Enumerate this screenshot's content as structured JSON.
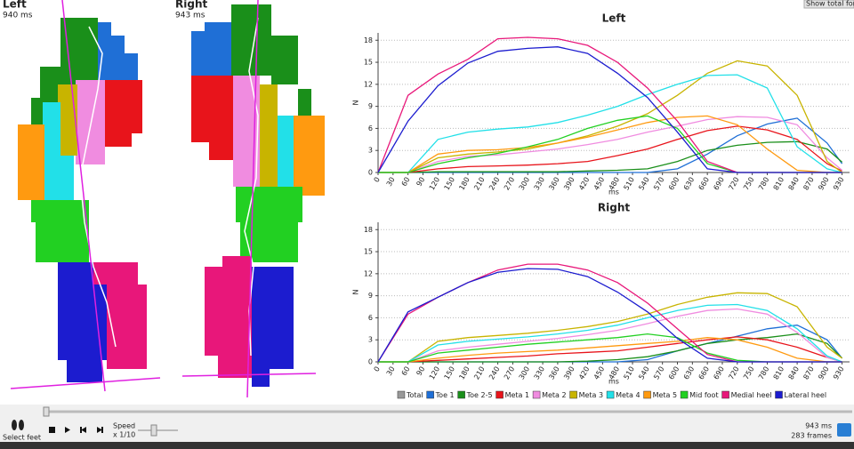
{
  "feet": {
    "left": {
      "label": "Left",
      "time": "940 ms"
    },
    "right": {
      "label": "Right",
      "time": "943 ms"
    }
  },
  "button": "Show total force",
  "chart_data": [
    {
      "type": "line",
      "title": "Left",
      "xlabel": "ms",
      "ylabel": "N",
      "grid": true,
      "x": [
        0,
        60,
        120,
        180,
        240,
        300,
        360,
        420,
        480,
        540,
        600,
        660,
        720,
        780,
        840,
        900,
        930
      ],
      "xlim": [
        0,
        945
      ],
      "xticks": [
        0,
        30,
        60,
        90,
        120,
        150,
        180,
        210,
        240,
        270,
        300,
        330,
        360,
        390,
        420,
        450,
        480,
        510,
        540,
        570,
        600,
        630,
        660,
        690,
        720,
        750,
        780,
        810,
        840,
        870,
        900,
        930
      ],
      "ylim": [
        0,
        19
      ],
      "yticks": [
        0,
        3,
        6,
        9,
        12,
        15,
        18
      ],
      "series": [
        {
          "color": "#1f6fd6",
          "values": [
            0,
            0,
            0,
            0,
            0,
            0,
            0,
            0,
            0,
            0,
            0.5,
            2.5,
            5,
            6.6,
            7.4,
            4,
            1.2
          ]
        },
        {
          "color": "#1a8f1a",
          "values": [
            0,
            0,
            0.1,
            0.1,
            0.1,
            0.1,
            0.1,
            0.2,
            0.3,
            0.5,
            1.5,
            3,
            3.7,
            4.1,
            4.2,
            3.2,
            1.4
          ]
        },
        {
          "color": "#e8141b",
          "values": [
            0,
            0,
            0.5,
            0.8,
            0.9,
            1,
            1.2,
            1.5,
            2.3,
            3.2,
            4.5,
            5.7,
            6.3,
            5.8,
            4.5,
            1.2,
            0.2
          ]
        },
        {
          "color": "#f08ce0",
          "values": [
            0,
            0,
            1.5,
            2.2,
            2.4,
            2.8,
            3.2,
            3.8,
            4.5,
            5.5,
            6.3,
            7.2,
            7.6,
            7.5,
            6.5,
            2,
            0.3
          ]
        },
        {
          "color": "#c8b400",
          "values": [
            0,
            0,
            2,
            2.5,
            2.8,
            3.2,
            4,
            5,
            6.3,
            8,
            10.5,
            13.5,
            15.2,
            14.5,
            10.5,
            1.5,
            0
          ]
        },
        {
          "color": "#22e0e8",
          "values": [
            0,
            0,
            4.5,
            5.5,
            5.9,
            6.2,
            6.8,
            7.8,
            9,
            10.6,
            12,
            13.2,
            13.3,
            11.5,
            3.5,
            0.5,
            0
          ]
        },
        {
          "color": "#ff9a10",
          "values": [
            0,
            0,
            2.5,
            3,
            3.1,
            3.4,
            4,
            4.8,
            5.8,
            6.8,
            7.5,
            7.7,
            6.5,
            3.2,
            0.3,
            0,
            0
          ]
        },
        {
          "color": "#22d022",
          "values": [
            0,
            0,
            1.2,
            2,
            2.6,
            3.5,
            4.5,
            6,
            7.1,
            7.7,
            6,
            1.2,
            0,
            0,
            0,
            0,
            0
          ]
        },
        {
          "color": "#e8177a",
          "values": [
            0,
            10.5,
            13.4,
            15.4,
            18.2,
            18.4,
            18.2,
            17.3,
            15,
            11.5,
            7,
            1.5,
            0,
            0,
            0,
            0,
            0
          ]
        },
        {
          "color": "#1c1ccf",
          "values": [
            0,
            7,
            11.8,
            14.9,
            16.5,
            16.9,
            17.1,
            16.2,
            13.5,
            10.2,
            5.5,
            0.5,
            0,
            0,
            0,
            0,
            0
          ]
        }
      ]
    },
    {
      "type": "line",
      "title": "Right",
      "xlabel": "ms",
      "ylabel": "N",
      "grid": true,
      "x": [
        0,
        60,
        120,
        180,
        240,
        300,
        360,
        420,
        480,
        540,
        600,
        660,
        720,
        780,
        840,
        900,
        930
      ],
      "xlim": [
        0,
        945
      ],
      "xticks": [
        0,
        30,
        60,
        90,
        120,
        150,
        180,
        210,
        240,
        270,
        300,
        330,
        360,
        390,
        420,
        450,
        480,
        510,
        540,
        570,
        600,
        630,
        660,
        690,
        720,
        750,
        780,
        810,
        840,
        870,
        900,
        930
      ],
      "ylim": [
        0,
        19
      ],
      "yticks": [
        0,
        3,
        6,
        9,
        12,
        15,
        18
      ],
      "series": [
        {
          "name": "Total",
          "color": "#999999",
          "visible": false,
          "values": [
            null,
            null,
            null,
            null,
            null,
            null,
            null,
            null,
            null,
            null,
            null,
            null,
            null,
            null,
            null,
            null,
            null
          ]
        },
        {
          "name": "Toe 1",
          "color": "#1f6fd6",
          "values": [
            0,
            0,
            0,
            0,
            0,
            0,
            0,
            0,
            0,
            0.3,
            1.5,
            2.5,
            3.5,
            4.5,
            5,
            3,
            0.5
          ]
        },
        {
          "name": "Toe 2-5",
          "color": "#1a8f1a",
          "values": [
            0,
            0,
            0,
            0,
            0,
            0,
            0,
            0.1,
            0.3,
            0.7,
            1.5,
            2.5,
            3,
            3.3,
            3.8,
            2.5,
            0.5
          ]
        },
        {
          "name": "Meta 1",
          "color": "#e8141b",
          "values": [
            0,
            0,
            0.2,
            0.4,
            0.6,
            0.8,
            1.1,
            1.3,
            1.5,
            2,
            2.5,
            3,
            3.4,
            3,
            2,
            0.6,
            0
          ]
        },
        {
          "name": "Meta 2",
          "color": "#f08ce0",
          "values": [
            0,
            0,
            1.5,
            2,
            2.4,
            2.8,
            3.2,
            3.7,
            4.3,
            5.2,
            6.2,
            7,
            7.2,
            6.5,
            4,
            0.6,
            0
          ]
        },
        {
          "name": "Meta 3",
          "color": "#c8b400",
          "values": [
            0,
            0,
            2.8,
            3.3,
            3.6,
            3.9,
            4.3,
            4.8,
            5.5,
            6.5,
            7.8,
            8.8,
            9.4,
            9.3,
            7.5,
            2,
            0.5
          ]
        },
        {
          "name": "Meta 4",
          "color": "#22e0e8",
          "values": [
            0,
            0,
            2.3,
            2.8,
            3.1,
            3.4,
            3.8,
            4.3,
            5,
            6,
            7,
            7.7,
            7.8,
            7,
            4.5,
            0.8,
            0
          ]
        },
        {
          "name": "Meta 5",
          "color": "#ff9a10",
          "values": [
            0,
            0,
            0.5,
            0.9,
            1.2,
            1.4,
            1.6,
            1.9,
            2.2,
            2.5,
            2.8,
            3.3,
            3,
            2,
            0.5,
            0,
            0
          ]
        },
        {
          "name": "Mid foot",
          "color": "#22d022",
          "values": [
            0,
            0,
            1.2,
            1.6,
            2,
            2.4,
            2.7,
            3,
            3.3,
            3.8,
            3.3,
            1.2,
            0.2,
            0,
            0,
            0,
            0
          ]
        },
        {
          "name": "Medial heel",
          "color": "#e8177a",
          "values": [
            0,
            6.5,
            8.8,
            10.8,
            12.5,
            13.3,
            13.3,
            12.5,
            10.8,
            8,
            4.5,
            1,
            0,
            0,
            0,
            0,
            0
          ]
        },
        {
          "name": "Lateral heel",
          "color": "#1c1ccf",
          "values": [
            0,
            6.8,
            8.8,
            10.8,
            12.2,
            12.7,
            12.6,
            11.6,
            9.5,
            6.8,
            3.2,
            0.5,
            0,
            0,
            0,
            0,
            0
          ]
        }
      ]
    }
  ],
  "controls": {
    "select_feet": "Select feet",
    "speed_label": "Speed",
    "speed_value": "x 1/10",
    "time": "943 ms",
    "frames": "283 frames"
  }
}
